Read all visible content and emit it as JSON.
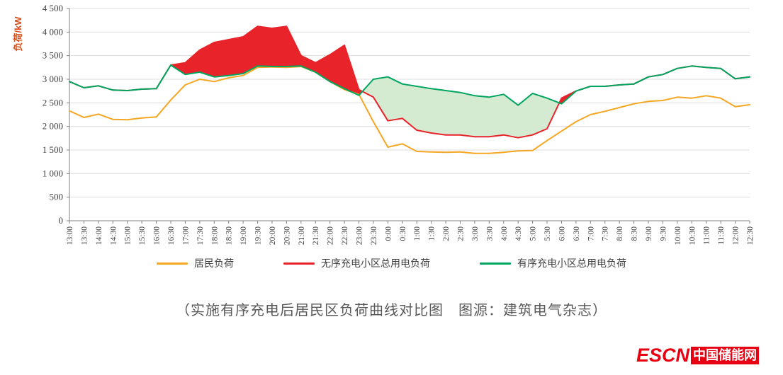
{
  "chart_data": {
    "type": "line",
    "title": "",
    "xlabel": "",
    "ylabel": "负荷/kW",
    "ylim": [
      0,
      4500
    ],
    "ytick_step": 500,
    "ytick_labels": [
      "0",
      "500",
      "1 000",
      "1 500",
      "2 000",
      "2 500",
      "3 000",
      "3 500",
      "4 000",
      "4 500"
    ],
    "grid": "horizontal",
    "legend_position": "bottom",
    "categories": [
      "13:00",
      "13:30",
      "14:00",
      "14:30",
      "15:00",
      "15:30",
      "16:00",
      "16:30",
      "17:00",
      "17:30",
      "18:00",
      "18:30",
      "19:00",
      "19:30",
      "20:00",
      "20:30",
      "21:00",
      "21:30",
      "22:00",
      "22:30",
      "23:00",
      "23:30",
      "0:00",
      "0:30",
      "1:00",
      "1:30",
      "2:00",
      "2:30",
      "3:00",
      "3:30",
      "4:00",
      "4:30",
      "5:00",
      "5:30",
      "6:00",
      "6:30",
      "7:00",
      "7:30",
      "8:00",
      "8:30",
      "9:00",
      "9:30",
      "10:00",
      "10:30",
      "11:00",
      "11:30",
      "12:00",
      "12:30"
    ],
    "series": [
      {
        "name": "居民负荷",
        "color": "#F5A623",
        "values": [
          2330,
          2190,
          2260,
          2150,
          2140,
          2180,
          2200,
          2560,
          2880,
          3000,
          2950,
          3030,
          3080,
          3250,
          3260,
          3250,
          3270,
          3150,
          2950,
          2780,
          2680,
          2100,
          1560,
          1630,
          1470,
          1460,
          1450,
          1460,
          1430,
          1430,
          1450,
          1480,
          1490,
          1700,
          1900,
          2100,
          2250,
          2320,
          2400,
          2480,
          2530,
          2550,
          2620,
          2600,
          2650,
          2600,
          2420,
          2460
        ]
      },
      {
        "name": "无序充电小区总用电负荷",
        "color": "#E8232A",
        "values": [
          2950,
          2820,
          2860,
          2770,
          2760,
          2790,
          2800,
          3300,
          3350,
          3620,
          3780,
          3840,
          3900,
          4120,
          4080,
          4120,
          3500,
          3350,
          3520,
          3720,
          2780,
          2620,
          2120,
          2170,
          1920,
          1860,
          1820,
          1820,
          1780,
          1780,
          1820,
          1760,
          1820,
          1950,
          2600,
          2750,
          2850,
          2850,
          2880,
          2900,
          3050,
          3100,
          3230,
          3280,
          3250,
          3230,
          3010,
          3050
        ]
      },
      {
        "name": "有序充电小区总用电负荷",
        "color": "#00A560",
        "values": [
          2950,
          2820,
          2860,
          2770,
          2760,
          2790,
          2800,
          3300,
          3100,
          3150,
          3050,
          3080,
          3120,
          3280,
          3270,
          3270,
          3280,
          3150,
          2950,
          2800,
          2660,
          3000,
          3050,
          2900,
          2850,
          2800,
          2760,
          2720,
          2650,
          2620,
          2680,
          2450,
          2700,
          2600,
          2480,
          2750,
          2850,
          2850,
          2880,
          2900,
          3050,
          3100,
          3230,
          3280,
          3250,
          3230,
          3010,
          3050
        ]
      }
    ],
    "fills": [
      {
        "upper": "无序充电小区总用电负荷",
        "lower": "有序充电小区总用电负荷",
        "color": "#E8232A",
        "opacity": 1
      },
      {
        "upper": "有序充电小区总用电负荷",
        "lower": "无序充电小区总用电负荷",
        "color": "#D5EBD1",
        "opacity": 1
      }
    ]
  },
  "caption": "（实施有序充电后居民区负荷曲线对比图　图源：建筑电气杂志）",
  "logo": {
    "brand_escn": "ESCN",
    "brand_cn": "中国储能网"
  },
  "colors": {
    "axis_title": "#D8501E",
    "grid": "#DCDCDC",
    "axis": "#808080",
    "tick_text": "#404040",
    "legend_text": "#404040",
    "caption_text": "#595959",
    "brand_red": "#E60012",
    "red_fill": "#E8232A",
    "green_fill": "#D5EBD1"
  }
}
